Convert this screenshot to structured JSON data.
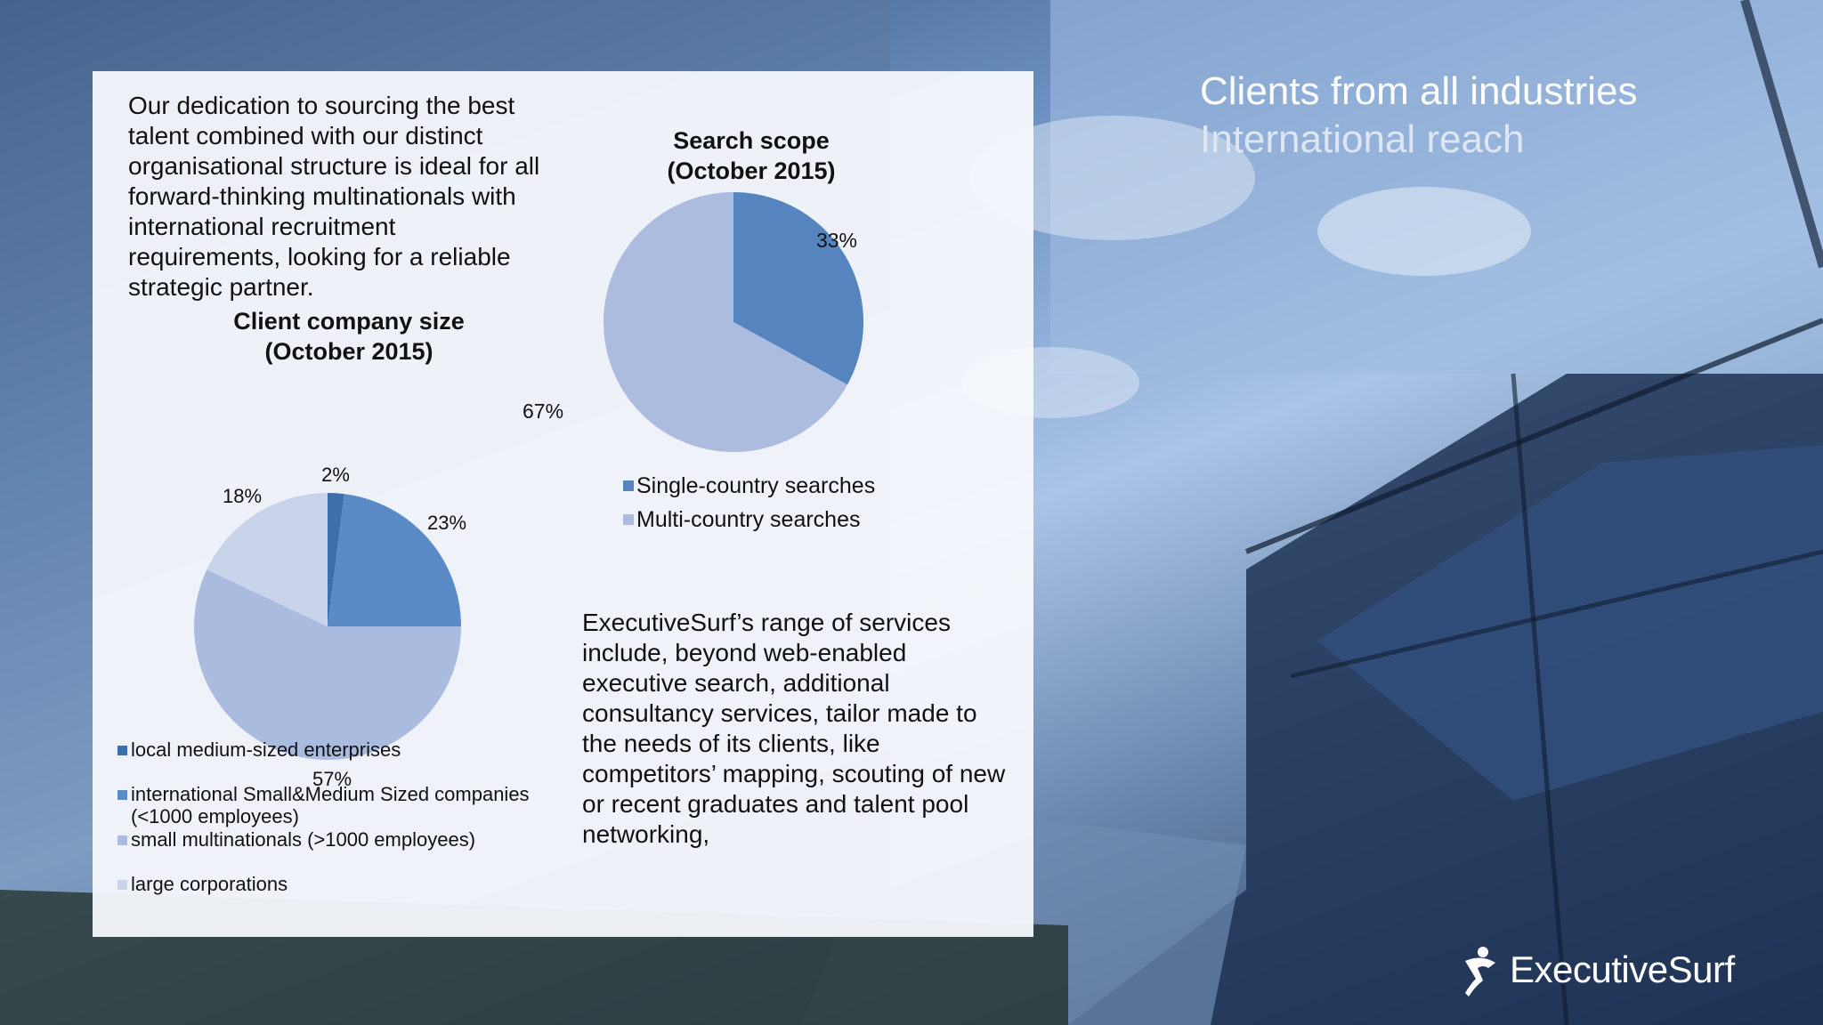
{
  "slide": {
    "headline_line1": "Clients from all industries",
    "headline_line2": "International reach",
    "intro_text": "Our dedication to sourcing the best talent combined with our distinct organisational structure is ideal for all forward-thinking multinationals with international recruitment requirements, looking for a reliable strategic partner.",
    "services_text": "ExecutiveSurf’s range of services include, beyond web-enabled executive search, additional consultancy services, tailor made to the needs of its clients, like competitors’ mapping, scouting of new or recent graduates and talent pool networking,",
    "logo_text": "ExecutiveSurf"
  },
  "colors": {
    "panel": "#f6f8fc",
    "pie_dark": "#4f7fba",
    "pie_medium": "#5b8bc6",
    "pie_light": "#a9bbdf",
    "pie_lightest": "#c9d4ea"
  },
  "chart_data": [
    {
      "type": "pie",
      "title_line1": "Client company size",
      "title_line2": "(October 2015)",
      "categories": [
        "local medium-sized enterprises",
        "international Small&Medium Sized companies (<1000 employees)",
        "small multinationals (>1000 employees)",
        "large corporations"
      ],
      "values": [
        2,
        23,
        57,
        18
      ],
      "labels": [
        "2%",
        "23%",
        "57%",
        "18%"
      ],
      "colors": [
        "#3f6fab",
        "#5b8bc6",
        "#a9bbdf",
        "#c9d4ea"
      ],
      "legend": "bottom"
    },
    {
      "type": "pie",
      "title_line1": "Search scope",
      "title_line2": "(October 2015)",
      "categories": [
        "Single-country searches",
        "Multi-country searches"
      ],
      "values": [
        33,
        67
      ],
      "labels": [
        "33%",
        "67%"
      ],
      "colors": [
        "#5684bf",
        "#abbcdf"
      ],
      "legend": "bottom"
    }
  ]
}
